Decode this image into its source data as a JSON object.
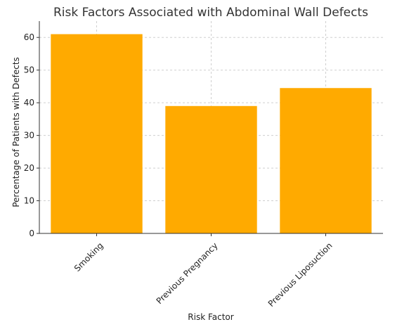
{
  "chart_data": {
    "type": "bar",
    "title": "Risk Factors Associated with Abdominal Wall Defects",
    "xlabel": "Risk Factor",
    "ylabel": "Percentage of Patients with Defects",
    "categories": [
      "Smoking",
      "Previous Pregnancy",
      "Previous Liposuction"
    ],
    "values": [
      61,
      39,
      44.5
    ],
    "ylim": [
      0,
      65
    ],
    "yticks": [
      0,
      10,
      20,
      30,
      40,
      50,
      60
    ],
    "grid": true,
    "bar_color": "#FFAA00"
  }
}
